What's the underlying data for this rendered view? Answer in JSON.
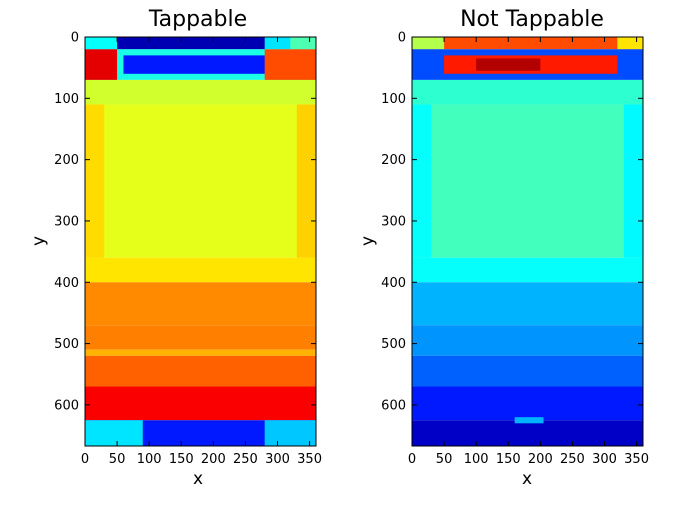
{
  "chart_data": [
    {
      "type": "heatmap",
      "title": "Tappable",
      "xlabel": "x",
      "ylabel": "y",
      "xlim": [
        0,
        360
      ],
      "ylim": [
        0,
        667
      ],
      "y_inverted": true,
      "colormap": "jet",
      "color_range": [
        0,
        1
      ],
      "xticks": [
        "0",
        "50",
        "100",
        "150",
        "200",
        "250",
        "300",
        "350"
      ],
      "yticks": [
        "0",
        "100",
        "200",
        "300",
        "400",
        "500",
        "600"
      ],
      "regions": [
        {
          "x": [
            0,
            360
          ],
          "y": [
            0,
            20
          ],
          "v": 0.35
        },
        {
          "x": [
            50,
            280
          ],
          "y": [
            0,
            20
          ],
          "v": 0.05
        },
        {
          "x": [
            0,
            50
          ],
          "y": [
            0,
            20
          ],
          "v": 0.38
        },
        {
          "x": [
            320,
            360
          ],
          "y": [
            0,
            20
          ],
          "v": 0.45
        },
        {
          "x": [
            0,
            360
          ],
          "y": [
            20,
            70
          ],
          "v": 0.4
        },
        {
          "x": [
            0,
            50
          ],
          "y": [
            20,
            70
          ],
          "v": 0.9
        },
        {
          "x": [
            60,
            300
          ],
          "y": [
            30,
            60
          ],
          "v": 0.15
        },
        {
          "x": [
            280,
            360
          ],
          "y": [
            20,
            70
          ],
          "v": 0.8
        },
        {
          "x": [
            0,
            360
          ],
          "y": [
            70,
            110
          ],
          "v": 0.58
        },
        {
          "x": [
            0,
            360
          ],
          "y": [
            110,
            360
          ],
          "v": 0.6
        },
        {
          "x": [
            0,
            30
          ],
          "y": [
            110,
            360
          ],
          "v": 0.66
        },
        {
          "x": [
            330,
            360
          ],
          "y": [
            110,
            360
          ],
          "v": 0.67
        },
        {
          "x": [
            0,
            360
          ],
          "y": [
            360,
            400
          ],
          "v": 0.65
        },
        {
          "x": [
            0,
            360
          ],
          "y": [
            400,
            470
          ],
          "v": 0.74
        },
        {
          "x": [
            0,
            360
          ],
          "y": [
            470,
            510
          ],
          "v": 0.75
        },
        {
          "x": [
            0,
            360
          ],
          "y": [
            510,
            520
          ],
          "v": 0.7
        },
        {
          "x": [
            0,
            360
          ],
          "y": [
            520,
            570
          ],
          "v": 0.78
        },
        {
          "x": [
            0,
            360
          ],
          "y": [
            570,
            625
          ],
          "v": 0.88
        },
        {
          "x": [
            0,
            360
          ],
          "y": [
            625,
            667
          ],
          "v": 0.15
        },
        {
          "x": [
            0,
            90
          ],
          "y": [
            625,
            667
          ],
          "v": 0.35
        },
        {
          "x": [
            280,
            360
          ],
          "y": [
            625,
            667
          ],
          "v": 0.32
        }
      ]
    },
    {
      "type": "heatmap",
      "title": "Not Tappable",
      "xlabel": "x",
      "ylabel": "y",
      "xlim": [
        0,
        360
      ],
      "ylim": [
        0,
        667
      ],
      "y_inverted": true,
      "colormap": "jet",
      "color_range": [
        0,
        1
      ],
      "xticks": [
        "0",
        "50",
        "100",
        "150",
        "200",
        "250",
        "300",
        "350"
      ],
      "yticks": [
        "0",
        "100",
        "200",
        "300",
        "400",
        "500",
        "600"
      ],
      "regions": [
        {
          "x": [
            0,
            360
          ],
          "y": [
            0,
            20
          ],
          "v": 0.8
        },
        {
          "x": [
            0,
            50
          ],
          "y": [
            0,
            20
          ],
          "v": 0.55
        },
        {
          "x": [
            320,
            360
          ],
          "y": [
            0,
            20
          ],
          "v": 0.65
        },
        {
          "x": [
            0,
            360
          ],
          "y": [
            20,
            70
          ],
          "v": 0.2
        },
        {
          "x": [
            50,
            320
          ],
          "y": [
            30,
            60
          ],
          "v": 0.85
        },
        {
          "x": [
            100,
            200
          ],
          "y": [
            35,
            55
          ],
          "v": 0.95
        },
        {
          "x": [
            0,
            360
          ],
          "y": [
            70,
            110
          ],
          "v": 0.42
        },
        {
          "x": [
            0,
            360
          ],
          "y": [
            110,
            360
          ],
          "v": 0.44
        },
        {
          "x": [
            0,
            30
          ],
          "y": [
            110,
            360
          ],
          "v": 0.38
        },
        {
          "x": [
            330,
            360
          ],
          "y": [
            110,
            360
          ],
          "v": 0.37
        },
        {
          "x": [
            0,
            360
          ],
          "y": [
            360,
            400
          ],
          "v": 0.38
        },
        {
          "x": [
            0,
            360
          ],
          "y": [
            400,
            470
          ],
          "v": 0.3
        },
        {
          "x": [
            0,
            360
          ],
          "y": [
            470,
            520
          ],
          "v": 0.27
        },
        {
          "x": [
            0,
            360
          ],
          "y": [
            520,
            570
          ],
          "v": 0.22
        },
        {
          "x": [
            0,
            360
          ],
          "y": [
            570,
            625
          ],
          "v": 0.15
        },
        {
          "x": [
            0,
            360
          ],
          "y": [
            625,
            667
          ],
          "v": 0.07
        },
        {
          "x": [
            160,
            205
          ],
          "y": [
            620,
            630
          ],
          "v": 0.3
        }
      ]
    }
  ]
}
